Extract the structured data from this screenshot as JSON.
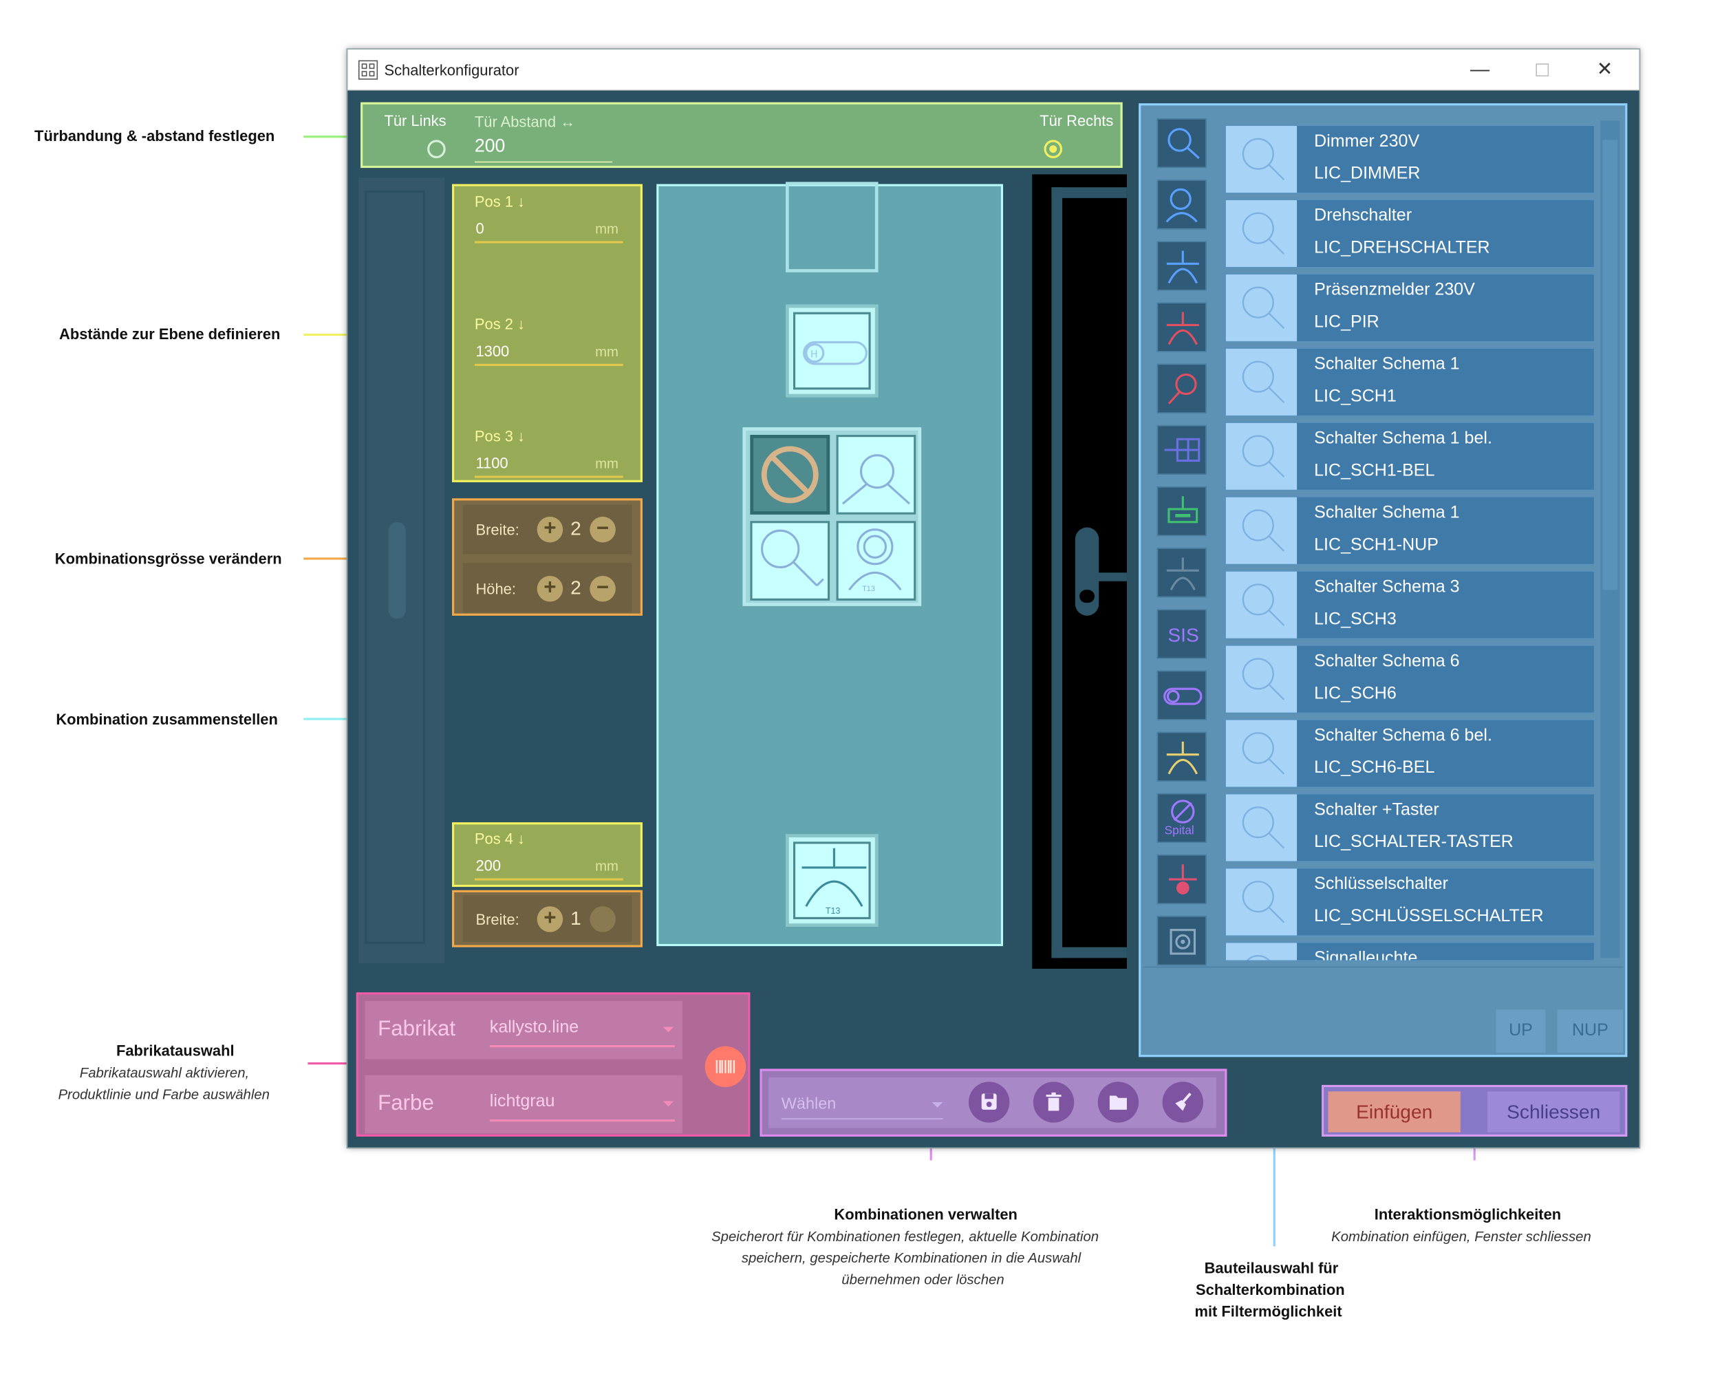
{
  "window": {
    "title": "Schalterkonfigurator"
  },
  "door": {
    "left_label": "Tür Links",
    "distance_label": "Tür Abstand ↔",
    "distance_value": "200",
    "right_label": "Tür Rechts",
    "selected": "right"
  },
  "positions": [
    {
      "label": "Pos 1 ↓",
      "value": "0",
      "unit": "mm"
    },
    {
      "label": "Pos 2 ↓",
      "value": "1300",
      "unit": "mm"
    },
    {
      "label": "Pos 3 ↓",
      "value": "1100",
      "unit": "mm"
    },
    {
      "label": "Pos 4 ↓",
      "value": "200",
      "unit": "mm"
    }
  ],
  "size1": {
    "width_label": "Breite:",
    "width_value": "2",
    "height_label": "Höhe:",
    "height_value": "2"
  },
  "size2": {
    "width_label": "Breite:",
    "width_value": "1"
  },
  "tile_labels": {
    "t13a": "T13",
    "t13b": "T13"
  },
  "components": [
    {
      "name": "Dimmer 230V",
      "code": "LIC_DIMMER"
    },
    {
      "name": "Drehschalter",
      "code": "LIC_DREHSCHALTER"
    },
    {
      "name": "Präsenzmelder 230V",
      "code": "LIC_PIR"
    },
    {
      "name": "Schalter Schema 1",
      "code": "LIC_SCH1"
    },
    {
      "name": "Schalter Schema 1 bel.",
      "code": "LIC_SCH1-BEL"
    },
    {
      "name": "Schalter Schema 1",
      "code": "LIC_SCH1-NUP"
    },
    {
      "name": "Schalter Schema 3",
      "code": "LIC_SCH3"
    },
    {
      "name": "Schalter Schema 6",
      "code": "LIC_SCH6"
    },
    {
      "name": "Schalter Schema 6 bel.",
      "code": "LIC_SCH6-BEL"
    },
    {
      "name": "Schalter +Taster",
      "code": "LIC_SCHALTER-TASTER"
    },
    {
      "name": "Schlüsselschalter",
      "code": "LIC_SCHLÜSSELSCHALTER"
    },
    {
      "name": "Signalleuchte",
      "code": ""
    }
  ],
  "filters": {
    "sis": "SIS",
    "spital": "Spital"
  },
  "buttons": {
    "up": "UP",
    "nup": "NUP",
    "insert": "Einfügen",
    "close": "Schliessen"
  },
  "fabrikat": {
    "fabrikat_label": "Fabrikat",
    "fabrikat_value": "kallysto.line",
    "farbe_label": "Farbe",
    "farbe_value": "lichtgrau"
  },
  "combos": {
    "placeholder": "Wählen"
  },
  "annotations": {
    "door": "Türbandung & -abstand festlegen",
    "distances": "Abstände zur Ebene definieren",
    "size": "Kombinationsgrösse verändern",
    "compose": "Kombination zusammenstellen",
    "fabrikat_title": "Fabrikatauswahl",
    "fabrikat_sub1": "Fabrikatauswahl aktivieren,",
    "fabrikat_sub2": "Produktlinie und Farbe auswählen",
    "manage_title": "Kombinationen verwalten",
    "manage_sub1": "Speicherort für Kombinationen festlegen, aktuelle Kombination",
    "manage_sub2": "speichern, gespeicherte Kombinationen in die Auswahl",
    "manage_sub3": "übernehmen oder löschen",
    "parts_title1": "Bauteilauswahl für",
    "parts_title2": "Schalterkombination",
    "parts_title3": "mit Filtermöglichkeit",
    "actions_title": "Interaktionsmöglichkeiten",
    "actions_sub": "Kombination einfügen, Fenster schliessen"
  },
  "colors": {
    "window_bg": "#2b5062",
    "door": "#79b07a",
    "positions": "#97ab57",
    "size": "#7a6a48",
    "center": "#64a6b0",
    "parts": "#5e92b4",
    "fabrikat": "#b06a98",
    "combos": "#9a78b8",
    "actions": "#8978c8"
  }
}
